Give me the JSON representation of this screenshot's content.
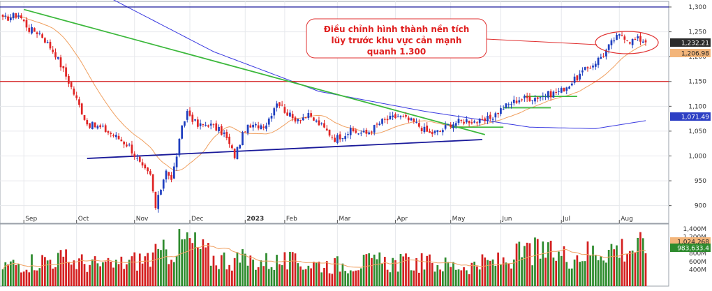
{
  "chart_data": {
    "type": "candlestick",
    "colors": {
      "up": "#1f3fbf",
      "down": "#e02525",
      "volume_up": "#2e8b2e",
      "volume_down": "#d42020",
      "ma_short": "#f0a060",
      "ma_long": "#3a3ae0",
      "trend_green": "#3cb83c",
      "support_blue": "#1a1a9a",
      "resistance_red": "#d41c1c",
      "top_line": "#1a1a9a",
      "ellipse": "#e02020"
    },
    "price_axis": {
      "ylim": [
        870,
        1300
      ],
      "ticks": [
        "1,300",
        "1,250",
        "1,200",
        "1,150",
        "1,100",
        "1,050",
        "1,000",
        "950",
        "900"
      ],
      "tick_values": [
        1300,
        1250,
        1200,
        1150,
        1100,
        1050,
        1000,
        950,
        900
      ]
    },
    "volume_axis": {
      "ylim": [
        0,
        1450
      ],
      "unit": "M",
      "ticks": [
        "1,400M",
        "1,200M",
        "800M",
        "600M",
        "400M"
      ],
      "tick_values": [
        1400,
        1200,
        800,
        600,
        400
      ]
    },
    "time_axis": {
      "months": [
        "Sep",
        "Oct",
        "Nov",
        "Dec",
        "2023",
        "Feb",
        "Mar",
        "Apr",
        "May",
        "Jun",
        "Jul",
        "Aug"
      ],
      "month_start_index": [
        8,
        28,
        50,
        71,
        92,
        107,
        127,
        149,
        170,
        189,
        212,
        234
      ]
    },
    "price_tags": {
      "last": "1,232.21",
      "ma_short": "1,206.98",
      "ma_long": "1,071.49"
    },
    "volume_tags": {
      "vol_ma": "1,024,268",
      "vol_last": "983,633.4"
    },
    "annotation": {
      "lines": [
        "Điều chỉnh hình thành nền tích",
        "lũy trước khu vực cản mạnh",
        "quanh 1.300"
      ]
    },
    "levels": {
      "top_line": 1300,
      "resistance": 1150
    },
    "trendlines": {
      "green_down": [
        [
          8,
          1295
        ],
        [
          183,
          1043
        ]
      ],
      "blue_support": [
        [
          32,
          995
        ],
        [
          182,
          1033
        ]
      ],
      "green_base_1": [
        [
          170,
          1058
        ],
        [
          190,
          1058
        ]
      ],
      "green_base_2": [
        [
          190,
          1097
        ],
        [
          208,
          1097
        ]
      ],
      "green_base_3": [
        [
          198,
          1120
        ],
        [
          218,
          1120
        ]
      ]
    },
    "bars": {
      "count": 245,
      "anchors": [
        [
          0,
          1275
        ],
        [
          6,
          1285
        ],
        [
          10,
          1255
        ],
        [
          14,
          1248
        ],
        [
          20,
          1205
        ],
        [
          25,
          1150
        ],
        [
          32,
          1065
        ],
        [
          38,
          1055
        ],
        [
          44,
          1035
        ],
        [
          48,
          1020
        ],
        [
          53,
          975
        ],
        [
          56,
          960
        ],
        [
          58,
          895
        ],
        [
          62,
          975
        ],
        [
          64,
          950
        ],
        [
          68,
          1055
        ],
        [
          70,
          1090
        ],
        [
          74,
          1060
        ],
        [
          78,
          1065
        ],
        [
          84,
          1045
        ],
        [
          88,
          1000
        ],
        [
          92,
          1055
        ],
        [
          96,
          1060
        ],
        [
          100,
          1065
        ],
        [
          104,
          1110
        ],
        [
          110,
          1075
        ],
        [
          116,
          1080
        ],
        [
          120,
          1065
        ],
        [
          126,
          1035
        ],
        [
          132,
          1050
        ],
        [
          138,
          1045
        ],
        [
          144,
          1070
        ],
        [
          150,
          1080
        ],
        [
          156,
          1068
        ],
        [
          162,
          1045
        ],
        [
          166,
          1050
        ],
        [
          170,
          1065
        ],
        [
          176,
          1072
        ],
        [
          182,
          1068
        ],
        [
          186,
          1080
        ],
        [
          190,
          1098
        ],
        [
          196,
          1115
        ],
        [
          202,
          1118
        ],
        [
          208,
          1125
        ],
        [
          212,
          1132
        ],
        [
          216,
          1148
        ],
        [
          220,
          1168
        ],
        [
          224,
          1185
        ],
        [
          228,
          1205
        ],
        [
          232,
          1235
        ],
        [
          235,
          1245
        ],
        [
          238,
          1232
        ],
        [
          241,
          1235
        ],
        [
          244,
          1232
        ]
      ],
      "volume_anchors": [
        [
          0,
          520
        ],
        [
          20,
          700
        ],
        [
          40,
          500
        ],
        [
          60,
          780
        ],
        [
          70,
          1150
        ],
        [
          80,
          700
        ],
        [
          95,
          640
        ],
        [
          110,
          600
        ],
        [
          125,
          540
        ],
        [
          140,
          600
        ],
        [
          160,
          580
        ],
        [
          175,
          500
        ],
        [
          190,
          640
        ],
        [
          200,
          880
        ],
        [
          215,
          760
        ],
        [
          230,
          960
        ],
        [
          244,
          984
        ]
      ]
    }
  }
}
